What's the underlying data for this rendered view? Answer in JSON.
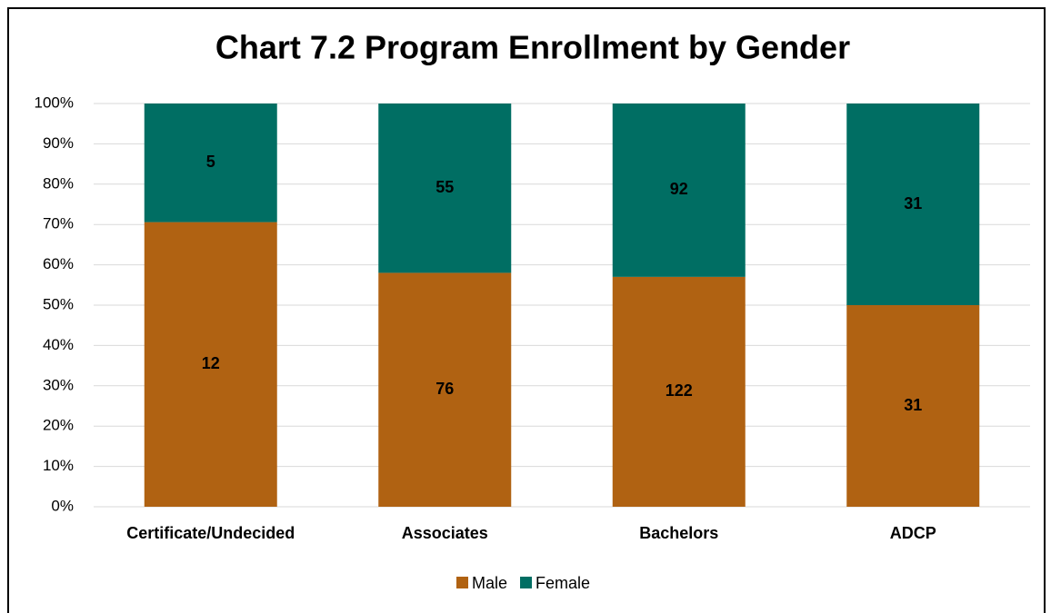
{
  "chart_data": {
    "type": "bar",
    "stack": "percent",
    "title": "Chart 7.2 Program Enrollment by Gender",
    "categories": [
      "Certificate/Undecided",
      "Associates",
      "Bachelors",
      "ADCP"
    ],
    "series": [
      {
        "name": "Male",
        "color": "#b06212",
        "values": [
          12,
          76,
          122,
          31
        ]
      },
      {
        "name": "Female",
        "color": "#006e63",
        "values": [
          5,
          55,
          92,
          31
        ]
      }
    ],
    "ylim": [
      0,
      100
    ],
    "yticks": [
      {
        "value": 0,
        "label": "0%"
      },
      {
        "value": 10,
        "label": "10%"
      },
      {
        "value": 20,
        "label": "20%"
      },
      {
        "value": 30,
        "label": "30%"
      },
      {
        "value": 40,
        "label": "40%"
      },
      {
        "value": 50,
        "label": "50%"
      },
      {
        "value": 60,
        "label": "60%"
      },
      {
        "value": 70,
        "label": "70%"
      },
      {
        "value": 80,
        "label": "80%"
      },
      {
        "value": 90,
        "label": "90%"
      },
      {
        "value": 100,
        "label": "100%"
      }
    ],
    "grid": true,
    "legend": "bottom"
  }
}
